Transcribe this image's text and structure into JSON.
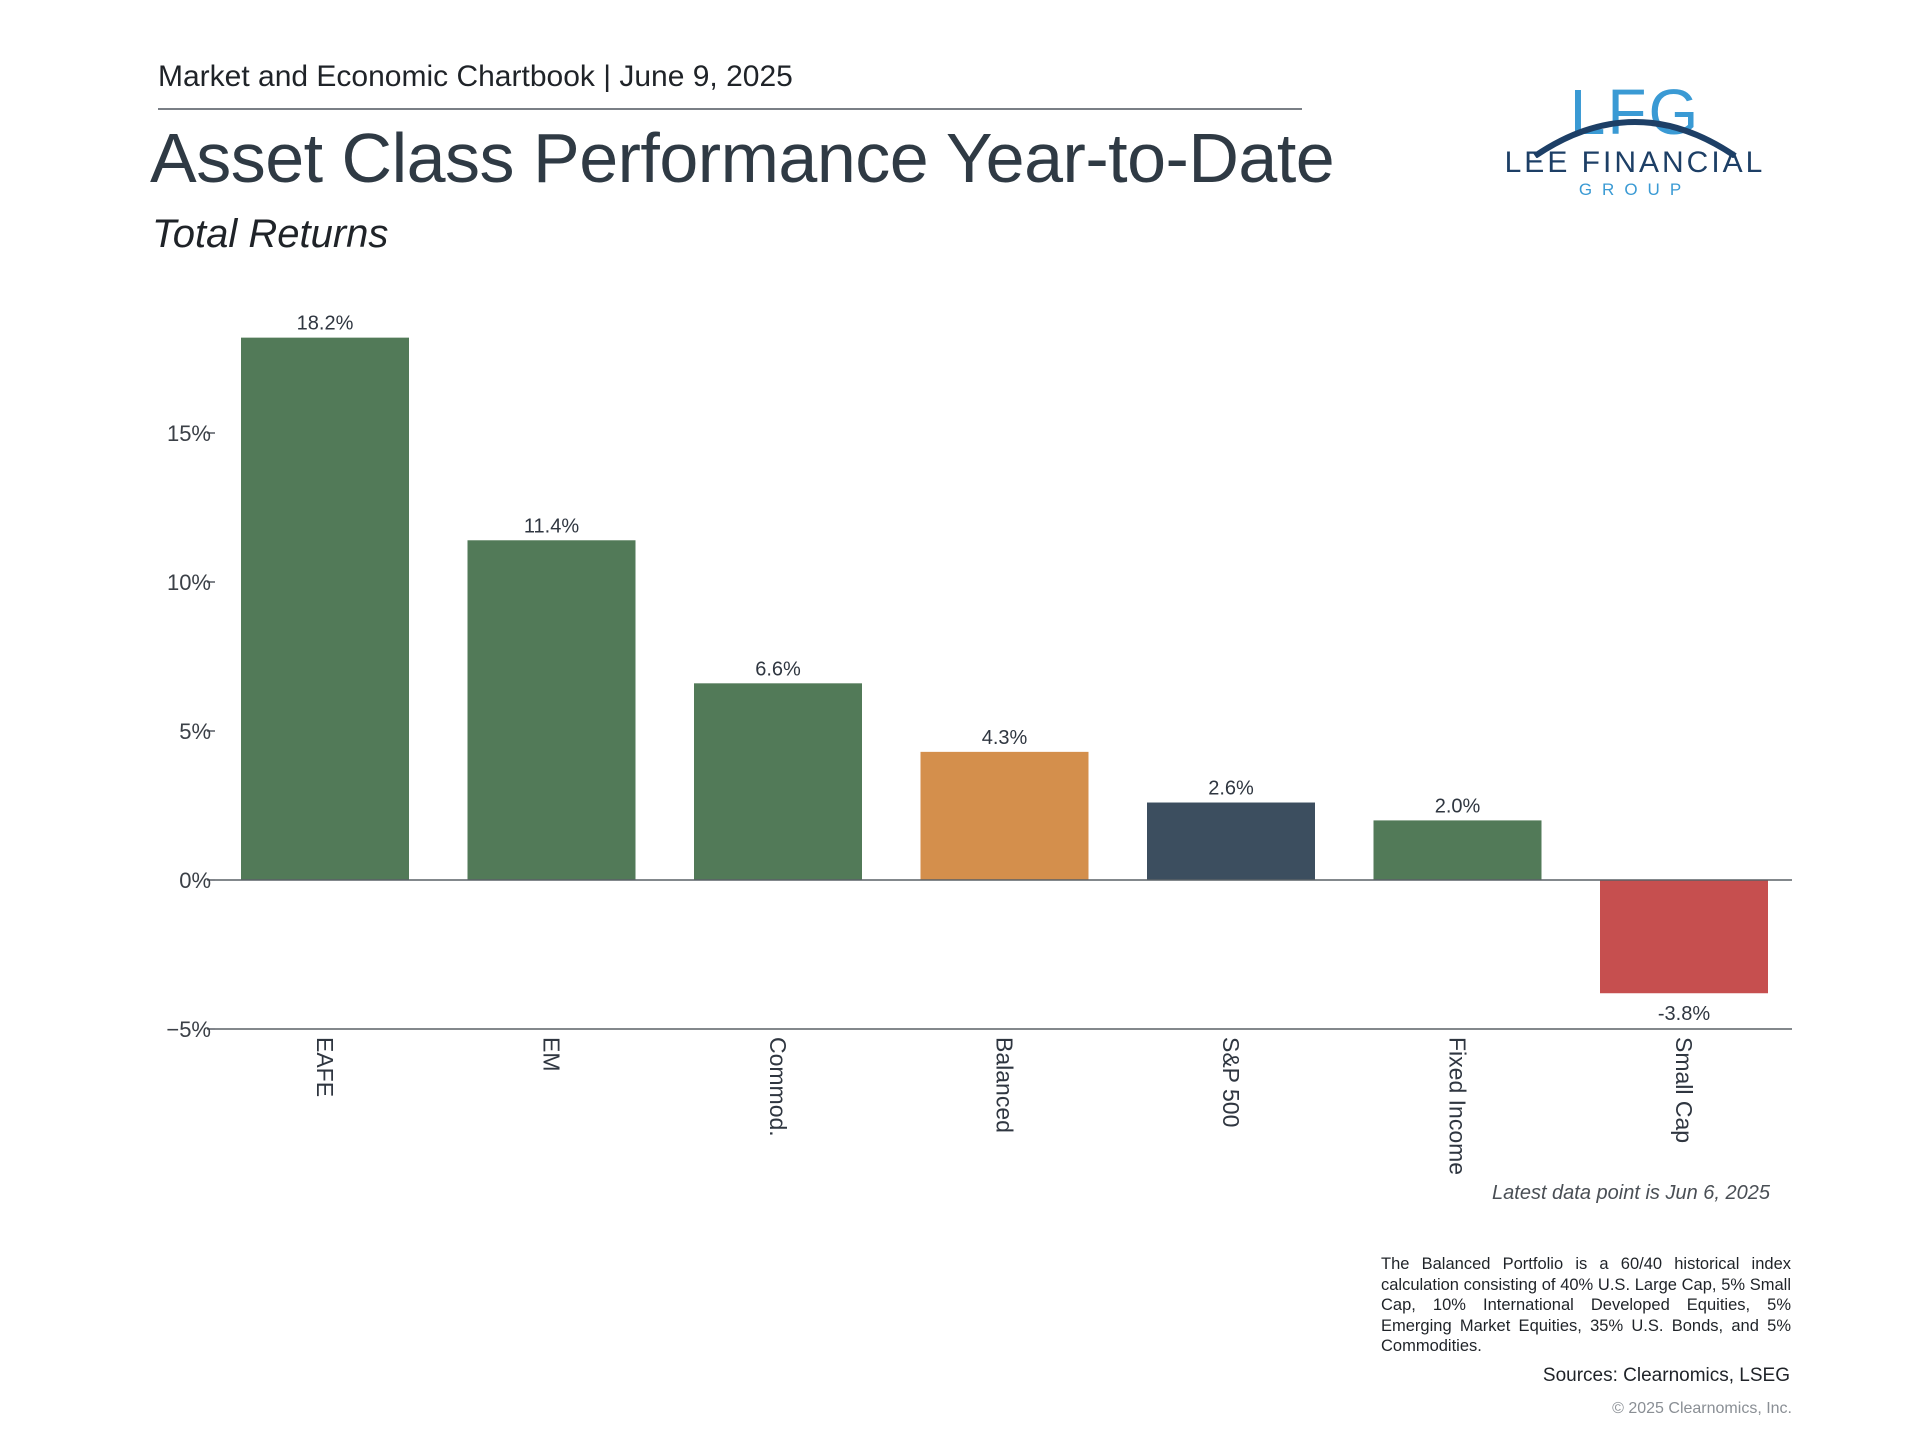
{
  "header": {
    "chartbook_label": "Market and Economic Chartbook | June 9, 2025",
    "title": "Asset Class Performance Year-to-Date",
    "subtitle": "Total Returns"
  },
  "logo": {
    "letters": "LFG",
    "name": "LEE FINANCIAL",
    "sub": "GROUP"
  },
  "chart_data": {
    "type": "bar",
    "title": "",
    "xlabel": "",
    "ylabel": "",
    "categories": [
      "EAFE",
      "EM",
      "Commod.",
      "Balanced",
      "S&P 500",
      "Fixed Income",
      "Small Cap"
    ],
    "values": [
      18.2,
      11.4,
      6.6,
      4.3,
      2.6,
      2.0,
      -3.8
    ],
    "value_labels": [
      "18.2%",
      "11.4%",
      "6.6%",
      "4.3%",
      "2.6%",
      "2.0%",
      "-3.8%"
    ],
    "bar_colors": [
      "#527a58",
      "#527a58",
      "#527a58",
      "#d48f4c",
      "#3c4e5f",
      "#527a58",
      "#c64f4f"
    ],
    "ylim": [
      -5,
      19
    ],
    "yticks": [
      -5,
      0,
      5,
      10,
      15
    ],
    "ytick_labels": [
      "−5%",
      "0%",
      "5%",
      "10%",
      "15%"
    ],
    "grid": false,
    "legend": "none"
  },
  "notes": {
    "latest": "Latest data point is Jun 6, 2025",
    "footnote": "The Balanced Portfolio is a 60/40 historical index calculation consisting of 40% U.S. Large Cap, 5% Small Cap, 10% International Developed Equities, 5% Emerging Market Equities, 35% U.S. Bonds, and 5% Commodities.",
    "sources": "Sources: Clearnomics, LSEG",
    "copyright": "© 2025 Clearnomics, Inc."
  },
  "colors": {
    "positive_bar": "#527a58",
    "balanced_bar": "#d48f4c",
    "sp500_bar": "#3c4e5f",
    "negative_bar": "#c64f4f",
    "logo_blue": "#3a9ad4",
    "logo_navy": "#1d3f66"
  }
}
